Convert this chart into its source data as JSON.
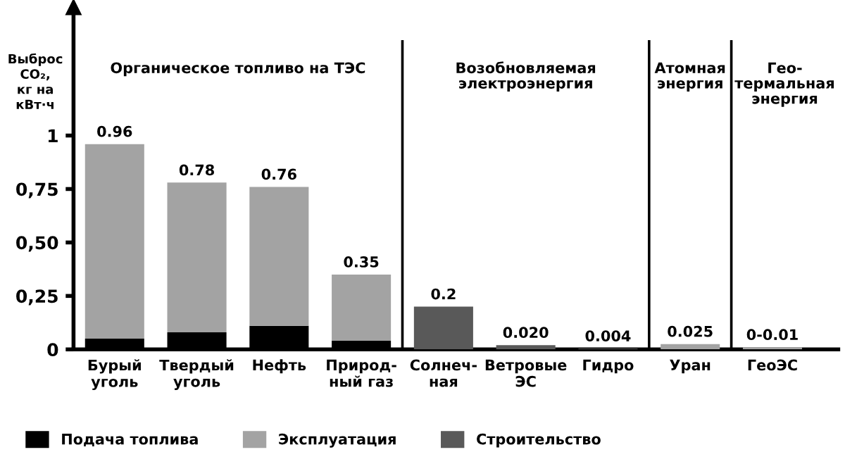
{
  "chart_data": {
    "type": "bar",
    "stacked": true,
    "ylabel": "Выброс\nCO₂,\nкг на\nкВт·ч",
    "categories": [
      "Бурый\nуголь",
      "Твердый\nуголь",
      "Нефть",
      "Природ-\nный газ",
      "Солнеч-\nная",
      "Ветровые\nЭС",
      "Гидро",
      "Уран",
      "ГеоЭС"
    ],
    "series": [
      {
        "name": "Подача топлива",
        "color": "#000000",
        "values": [
          0.05,
          0.08,
          0.11,
          0.04,
          null,
          null,
          null,
          null,
          null
        ]
      },
      {
        "name": "Эксплуатация",
        "color": "#a3a3a3",
        "values": [
          0.91,
          0.7,
          0.65,
          0.31,
          null,
          null,
          null,
          0.025,
          0.01
        ]
      },
      {
        "name": "Строительство",
        "color": "#595959",
        "values": [
          null,
          null,
          null,
          null,
          0.2,
          0.02,
          0.004,
          null,
          null
        ]
      }
    ],
    "totals": [
      "0.96",
      "0.78",
      "0.76",
      "0.35",
      "0.2",
      "0.020",
      "0.004",
      "0.025",
      "0-0.01"
    ],
    "ylim": [
      0,
      1.6
    ],
    "yticks": [
      0,
      {
        "value": 0.25,
        "label": "0,25"
      },
      {
        "value": 0.5,
        "label": "0,50"
      },
      {
        "value": 0.75,
        "label": "0,75"
      },
      1
    ],
    "annotations": [
      "Органическое топливо на ТЭС",
      "Возобновляемая\nэлектроэнергия",
      "Атомная\nэнергия",
      "Гео-\nтермальная\nэнергия"
    ],
    "legend": "bottom",
    "grid": false
  }
}
